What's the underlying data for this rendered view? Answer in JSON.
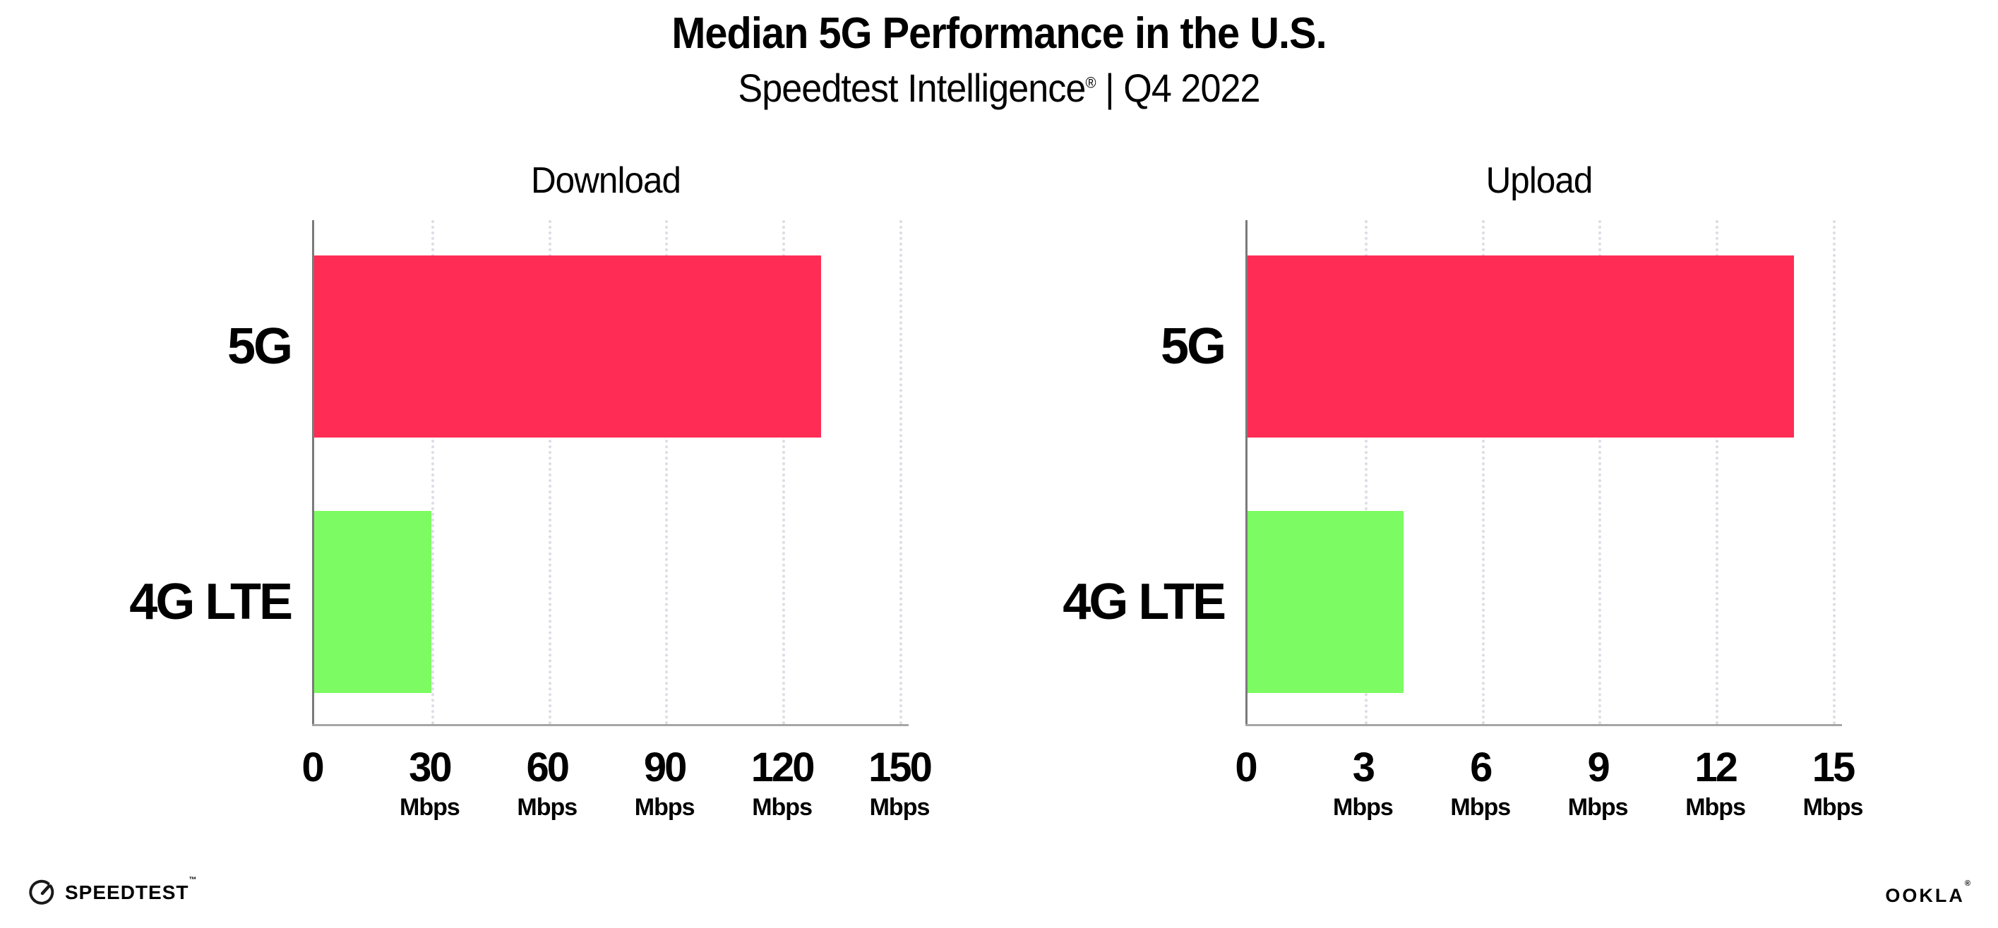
{
  "header": {
    "title": "Median 5G Performance in the U.S.",
    "subtitle_brand": "Speedtest Intelligence",
    "subtitle_reg": "®",
    "subtitle_period": " | Q4 2022"
  },
  "chart_data": [
    {
      "type": "bar",
      "orientation": "horizontal",
      "title": "Download",
      "categories": [
        "5G",
        "4G LTE"
      ],
      "values": [
        130,
        30
      ],
      "unit": "Mbps",
      "xlim": [
        0,
        150
      ],
      "xticks": [
        0,
        30,
        60,
        90,
        120,
        150
      ],
      "tick_unit_label": "Mbps",
      "bar_colors": [
        "#FF2D55",
        "#7CFC62"
      ],
      "grid": "dotted-vertical-gridlines",
      "legend": "none"
    },
    {
      "type": "bar",
      "orientation": "horizontal",
      "title": "Upload",
      "categories": [
        "5G",
        "4G LTE"
      ],
      "values": [
        14,
        4
      ],
      "unit": "Mbps",
      "xlim": [
        0,
        15
      ],
      "xticks": [
        0,
        3,
        6,
        9,
        12,
        15
      ],
      "tick_unit_label": "Mbps",
      "bar_colors": [
        "#FF2D55",
        "#7CFC62"
      ],
      "grid": "dotted-vertical-gridlines",
      "legend": "none"
    }
  ],
  "footer": {
    "speedtest_label": "SPEEDTEST",
    "speedtest_tm": "™",
    "ookla_label": "OOKLA",
    "ookla_reg": "®"
  },
  "colors": {
    "bar_5g": "#FF2D55",
    "bar_4g_lte": "#7CFC62",
    "y_axis_line": "#7A7A7A",
    "x_axis_line": "#A5A5A5",
    "gridline": "#DCDCE6",
    "text": "#000000",
    "background": "#FFFFFF"
  }
}
